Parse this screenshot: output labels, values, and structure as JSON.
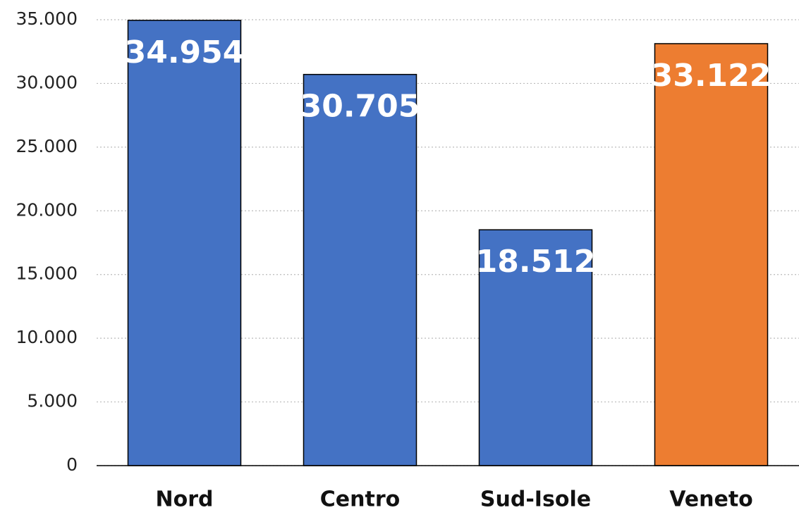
{
  "chart_data": {
    "type": "bar",
    "categories": [
      "Nord",
      "Centro",
      "Sud-Isole",
      "Veneto"
    ],
    "values": [
      34954,
      30705,
      18512,
      33122
    ],
    "value_labels": [
      "34.954",
      "30.705",
      "18.512",
      "33.122"
    ],
    "colors": [
      "#4472c4",
      "#4472c4",
      "#4472c4",
      "#ed7d31"
    ],
    "ylim": [
      0,
      35000
    ],
    "yticks": [
      0,
      {
        "value": 5000,
        "label": "5.000"
      },
      {
        "value": 10000,
        "label": "10.000"
      },
      {
        "value": 15000,
        "label": "15.000"
      },
      {
        "value": 20000,
        "label": "20.000"
      },
      {
        "value": 25000,
        "label": "25.000"
      },
      {
        "value": 30000,
        "label": "30.000"
      },
      {
        "value": 35000,
        "label": "35.000"
      }
    ],
    "grid": true
  }
}
